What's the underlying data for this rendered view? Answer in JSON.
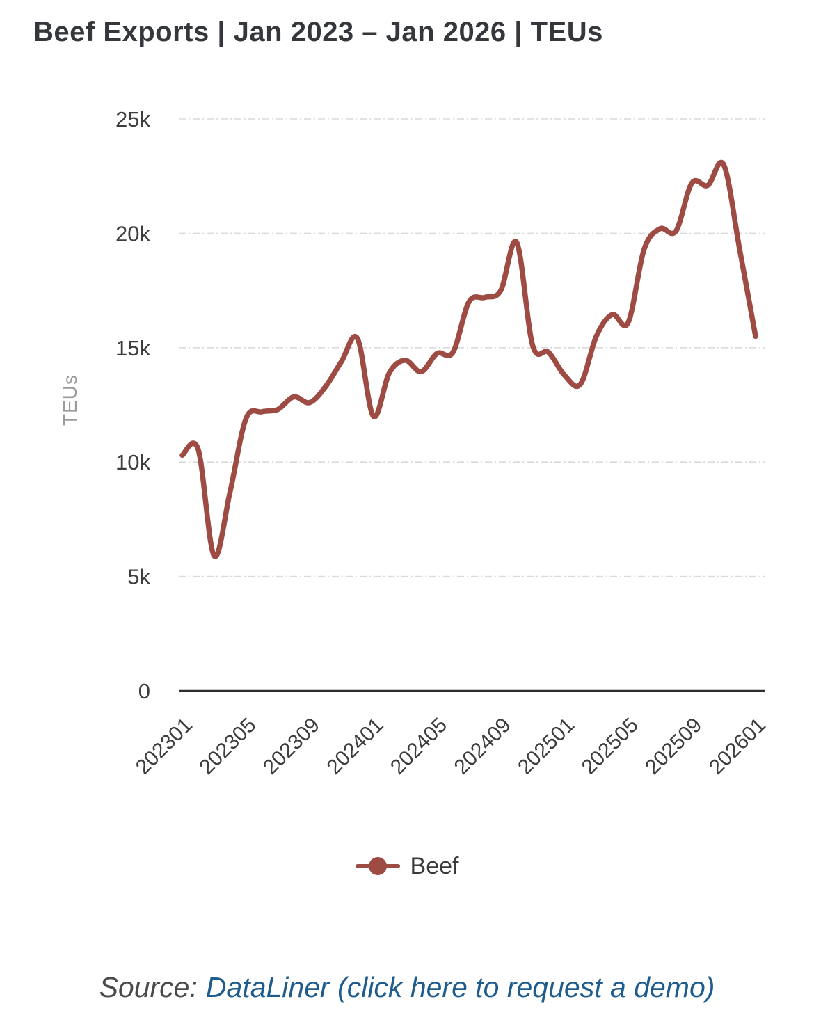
{
  "page": {
    "title": "Beef Exports | Jan 2023 – Jan 2026 | TEUs"
  },
  "chart_data": {
    "type": "line",
    "title": "Beef Exports | Jan 2023 – Jan 2026 | TEUs",
    "xlabel": "",
    "ylabel": "TEUs",
    "x": [
      "202301",
      "202302",
      "202303",
      "202304",
      "202305",
      "202306",
      "202307",
      "202308",
      "202309",
      "202310",
      "202311",
      "202312",
      "202401",
      "202402",
      "202403",
      "202404",
      "202405",
      "202406",
      "202407",
      "202408",
      "202409",
      "202410",
      "202411",
      "202412",
      "202501",
      "202502",
      "202503",
      "202504",
      "202505",
      "202506",
      "202507",
      "202508",
      "202509",
      "202510",
      "202511",
      "202512",
      "202601"
    ],
    "series": [
      {
        "name": "Beef",
        "color": "#9d4b43",
        "marker": "circle",
        "values": [
          10300,
          10550,
          5900,
          8700,
          11900,
          12200,
          12300,
          12850,
          12600,
          13300,
          14400,
          15400,
          12000,
          13900,
          14450,
          13950,
          14750,
          14800,
          17000,
          17200,
          17500,
          19600,
          15100,
          14800,
          13800,
          13400,
          15500,
          16450,
          16100,
          19300,
          20200,
          20100,
          22200,
          22100,
          23000,
          19300,
          15500
        ]
      }
    ],
    "ylim": [
      0,
      25000
    ],
    "yticks": {
      "values": [
        0,
        5000,
        10000,
        15000,
        20000,
        25000
      ],
      "labels": [
        "0",
        "5k",
        "10k",
        "15k",
        "20k",
        "25k"
      ]
    },
    "xtick_labels": [
      "202301",
      "202305",
      "202309",
      "202401",
      "202405",
      "202409",
      "202501",
      "202505",
      "202509",
      "202601"
    ],
    "xtick_every": 4,
    "xtick_rotation": -45,
    "grid": "horizontal-dashed",
    "legend_position": "bottom-center"
  },
  "legend": {
    "label": "Beef"
  },
  "footer": {
    "prefix": "Source:",
    "link_text": "DataLiner (click here to request a demo)"
  },
  "colors": {
    "line": "#9d4b43",
    "title": "#34383d",
    "axis": "#2d2d2d",
    "grid": "#dadada",
    "tick_label": "#3d3d3d",
    "axis_title": "#9a9a9a",
    "source_text": "#4a4a4a",
    "source_link": "#1e5c8e"
  }
}
